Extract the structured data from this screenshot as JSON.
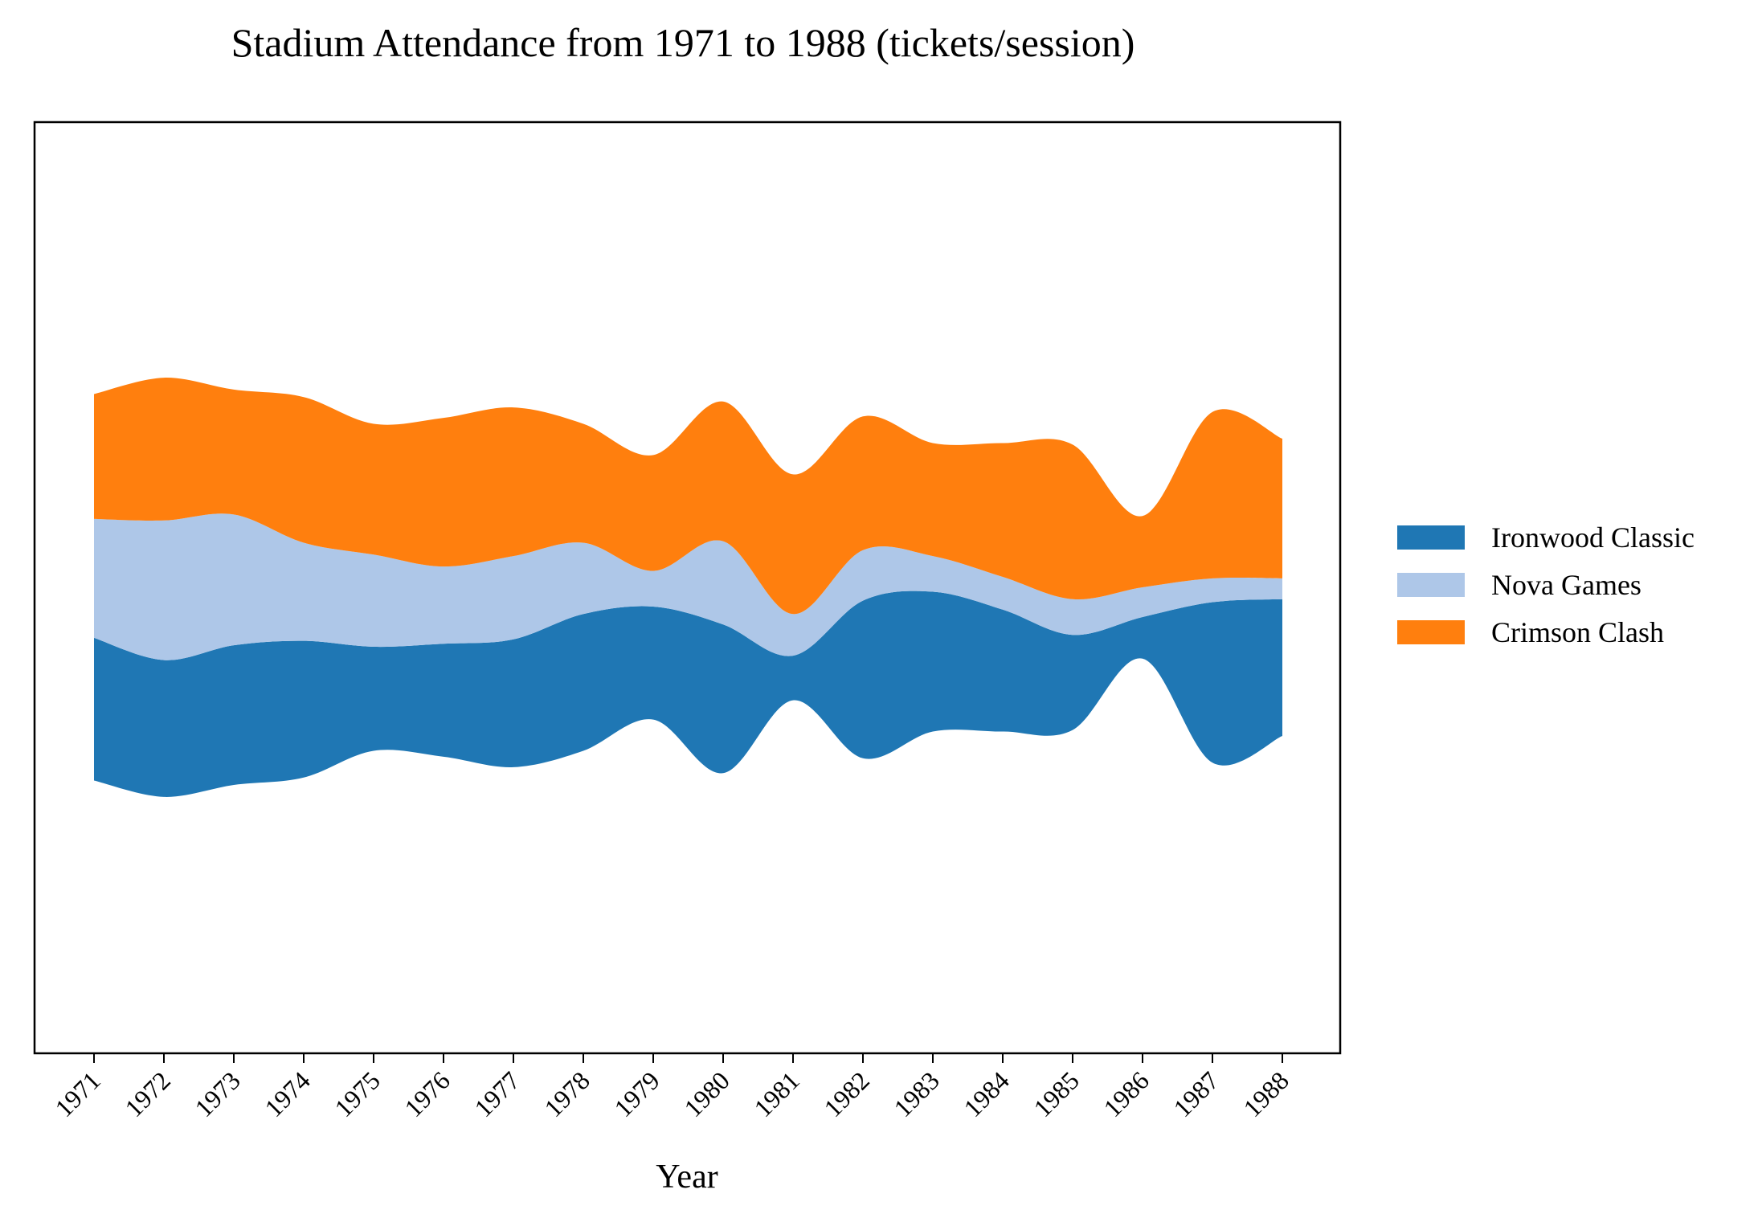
{
  "chart_data": {
    "type": "area",
    "subtype": "streamgraph",
    "title": "Stadium Attendance from 1971 to 1988 (tickets/session)",
    "xlabel": "Year",
    "ylabel": "",
    "categories": [
      "1971",
      "1972",
      "1973",
      "1974",
      "1975",
      "1976",
      "1977",
      "1978",
      "1979",
      "1980",
      "1981",
      "1982",
      "1983",
      "1984",
      "1985",
      "1986",
      "1987",
      "1988"
    ],
    "series": [
      {
        "name": "Ironwood Classic",
        "color": "#1f77b4",
        "values": [
          48,
          46,
          47,
          46,
          35,
          38,
          43,
          46,
          38,
          50,
          15,
          53,
          47,
          41,
          32,
          14,
          54,
          46
        ]
      },
      {
        "name": "Nova Games",
        "color": "#aec7e8",
        "values": [
          40,
          47,
          44,
          33,
          31,
          26,
          28,
          24,
          12,
          28,
          14,
          17,
          12,
          11,
          12,
          10,
          8,
          7
        ]
      },
      {
        "name": "Crimson Clash",
        "color": "#ff7f0e",
        "values": [
          42,
          48,
          42,
          49,
          44,
          50,
          50,
          40,
          39,
          47,
          47,
          45,
          38,
          45,
          52,
          24,
          56,
          47
        ]
      }
    ],
    "baseline": "symmetric",
    "grid": false,
    "legend_position": "right"
  }
}
